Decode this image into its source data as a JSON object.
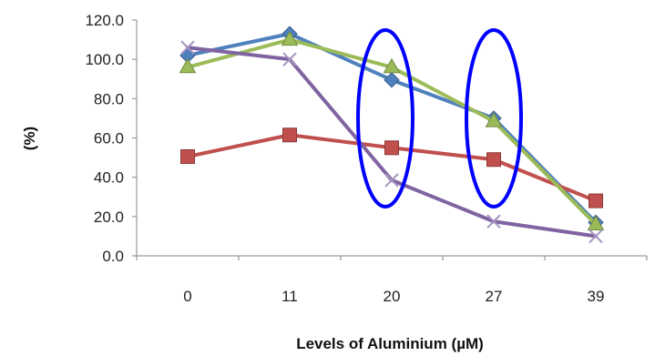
{
  "chart_data": {
    "type": "line",
    "xlabel": "Levels of Aluminium (µM)",
    "ylabel": "(%)",
    "categories": [
      "0",
      "11",
      "20",
      "27",
      "39"
    ],
    "ylim": [
      0,
      120
    ],
    "yticks": [
      "0.0",
      "20.0",
      "40.0",
      "60.0",
      "80.0",
      "100.0",
      "120.0"
    ],
    "grid": false,
    "legend": "none",
    "series": [
      {
        "values": [
          102.0,
          113.0,
          89.5,
          70.0,
          17.0
        ],
        "color": "#4f81bd",
        "marker": "diamond"
      },
      {
        "values": [
          50.5,
          61.5,
          55.0,
          49.0,
          28.0
        ],
        "color": "#c0504d",
        "marker": "square"
      },
      {
        "values": [
          96.0,
          110.0,
          96.0,
          68.5,
          16.0
        ],
        "color": "#9bbb59",
        "marker": "triangle"
      },
      {
        "values": [
          106.0,
          100.0,
          38.5,
          17.5,
          10.0
        ],
        "color": "#8064a2",
        "marker": "x"
      }
    ],
    "annotations": [
      {
        "type": "ellipse",
        "category": "20",
        "color": "#0000ff"
      },
      {
        "type": "ellipse",
        "category": "27",
        "color": "#0000ff"
      }
    ]
  }
}
